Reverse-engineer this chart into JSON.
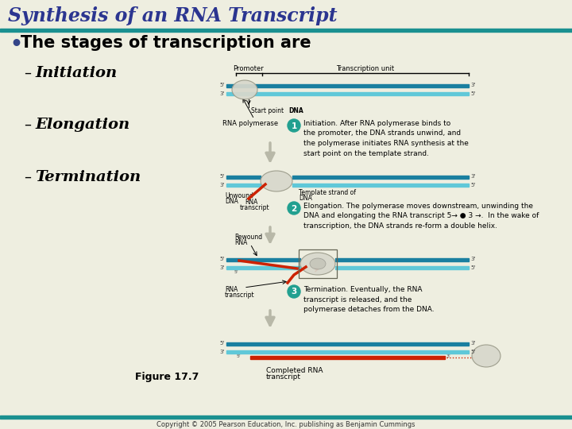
{
  "title": "Synthesis of an RNA Transcript",
  "bullet": "The stages of transcription are",
  "sub_bullets": [
    "Initiation",
    "Elongation",
    "Termination"
  ],
  "bg_color": "#eeeee0",
  "title_color": "#2b3590",
  "title_line_color": "#1a9090",
  "bullet_color": "#000000",
  "figure_label": "Figure 17.7",
  "copyright": "Copyright © 2005 Pearson Education, Inc. publishing as Benjamin Cummings",
  "annotation1": "Initiation. After RNA polymerase binds to\nthe promoter, the DNA strands unwind, and\nthe polymerase initiates RNA synthesis at the\nstart point on the template strand.",
  "annotation2": "Elongation. The polymerase moves downstream, unwinding the\nDNA and elongating the RNA transcript 5→ ● 3 →.  In the wake of\ntranscription, the DNA strands re-form a double helix.",
  "annotation3": "Termination. Eventually, the RNA\ntranscript is released, and the\npolymerase detaches from the DNA.",
  "dna_dark": "#1a7fa0",
  "dna_light": "#60c8d8",
  "dna_olive": "#909060",
  "rna_color": "#cc2200",
  "polymerase_color": "#d8d8cc",
  "arrow_color": "#b8b8a8",
  "num_circle_color": "#22a090"
}
